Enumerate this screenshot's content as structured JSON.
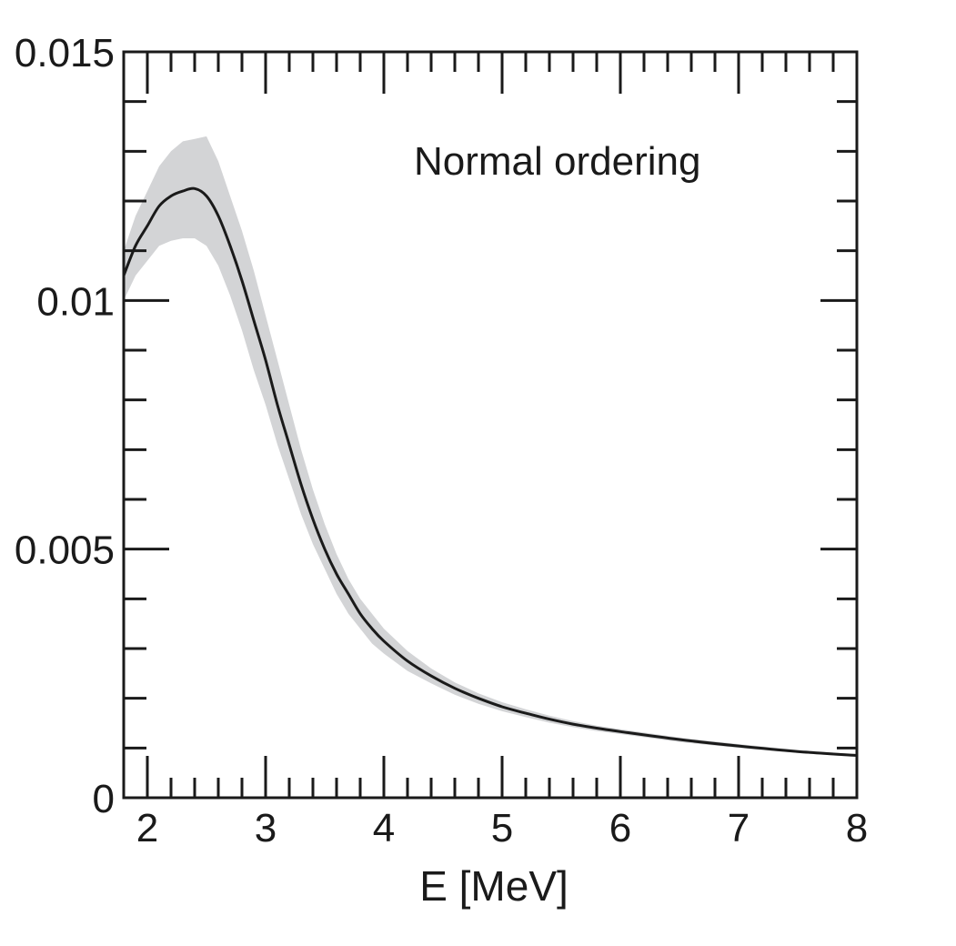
{
  "chart_data": {
    "type": "line",
    "title": "",
    "xlabel": "E [MeV]",
    "ylabel": "",
    "xlim": [
      1.8,
      8
    ],
    "ylim": [
      0,
      0.015
    ],
    "xticks": [
      2,
      3,
      4,
      5,
      6,
      7,
      8
    ],
    "xtick_labels": [
      "2",
      "3",
      "4",
      "5",
      "6",
      "7",
      "8"
    ],
    "yticks": [
      0,
      0.005,
      0.01,
      0.015
    ],
    "ytick_labels": [
      "0",
      "0.005",
      "0.01",
      "0.015"
    ],
    "annotation": "Normal ordering",
    "grid": false,
    "colors": {
      "line": "#1a1a1a",
      "band": "#d3d4d6",
      "frame": "#1a1a1a"
    },
    "series": [
      {
        "kind": "line",
        "x": [
          1.8,
          1.9,
          2.0,
          2.1,
          2.2,
          2.3,
          2.4,
          2.5,
          2.6,
          2.7,
          2.8,
          2.9,
          3.0,
          3.1,
          3.2,
          3.3,
          3.4,
          3.5,
          3.6,
          3.7,
          3.8,
          3.9,
          4.0,
          4.2,
          4.4,
          4.6,
          4.8,
          5.0,
          5.2,
          5.4,
          5.6,
          5.8,
          6.0,
          6.5,
          7.0,
          7.5,
          8.0
        ],
        "y": [
          0.0105,
          0.0111,
          0.0115,
          0.0119,
          0.0121,
          0.0122,
          0.01225,
          0.0121,
          0.0117,
          0.0111,
          0.0104,
          0.0096,
          0.0088,
          0.0079,
          0.0071,
          0.0063,
          0.0056,
          0.005,
          0.0045,
          0.0041,
          0.0037,
          0.0034,
          0.00315,
          0.00275,
          0.00245,
          0.0022,
          0.002,
          0.00183,
          0.0017,
          0.00158,
          0.00148,
          0.0014,
          0.00133,
          0.00117,
          0.00104,
          0.00093,
          0.00085
        ]
      },
      {
        "kind": "band",
        "x": [
          1.8,
          1.9,
          2.0,
          2.1,
          2.2,
          2.3,
          2.4,
          2.5,
          2.6,
          2.7,
          2.8,
          2.9,
          3.0,
          3.1,
          3.2,
          3.3,
          3.4,
          3.5,
          3.6,
          3.7,
          3.8,
          3.9,
          4.0,
          4.2,
          4.4,
          4.6,
          4.8,
          5.0,
          5.2,
          5.4,
          5.6,
          5.8,
          6.0,
          6.5,
          7.0,
          7.5,
          8.0
        ],
        "lower": [
          0.01,
          0.0105,
          0.0108,
          0.0111,
          0.0112,
          0.01125,
          0.01125,
          0.0111,
          0.0107,
          0.0101,
          0.0094,
          0.0086,
          0.0079,
          0.0071,
          0.0064,
          0.0057,
          0.0051,
          0.0046,
          0.0041,
          0.0037,
          0.0034,
          0.0031,
          0.0029,
          0.00255,
          0.0023,
          0.00207,
          0.00189,
          0.00174,
          0.00162,
          0.00151,
          0.00142,
          0.00134,
          0.00128,
          0.00112,
          0.001,
          0.0009,
          0.00082
        ],
        "upper": [
          0.011,
          0.0117,
          0.0122,
          0.0127,
          0.013,
          0.0132,
          0.01325,
          0.0133,
          0.0128,
          0.0121,
          0.0114,
          0.0106,
          0.0097,
          0.0088,
          0.0079,
          0.007,
          0.0062,
          0.0055,
          0.0049,
          0.0044,
          0.004,
          0.0037,
          0.0034,
          0.00295,
          0.0026,
          0.00232,
          0.0021,
          0.00192,
          0.00178,
          0.00165,
          0.00154,
          0.00145,
          0.00138,
          0.00121,
          0.00108,
          0.00096,
          0.00087
        ]
      }
    ]
  }
}
